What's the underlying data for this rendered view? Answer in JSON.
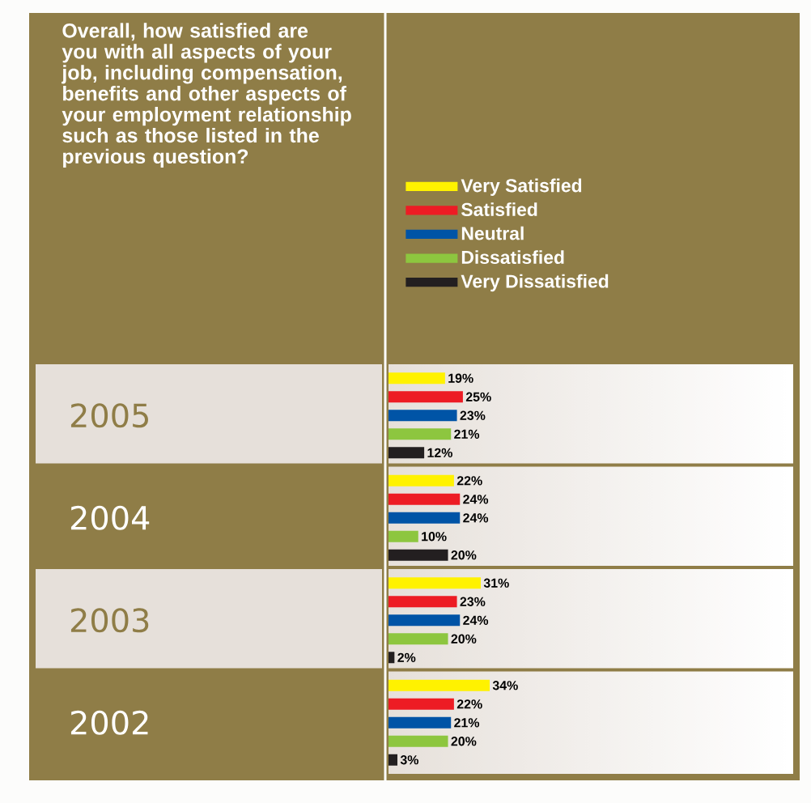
{
  "chart_data": {
    "type": "bar",
    "orientation": "horizontal",
    "title": "Overall, how satisfied are you with all aspects of your job, including compensation, benefits and other aspects of your employment relationship such as those listed in the previous question?",
    "categories": [
      "2005",
      "2004",
      "2003",
      "2002"
    ],
    "series": [
      {
        "name": "Very Satisfied",
        "color": "#fff200",
        "values": [
          19,
          22,
          31,
          34
        ],
        "value_labels": [
          "19%",
          "22%",
          "31%",
          "34%"
        ]
      },
      {
        "name": "Satisfied",
        "color": "#ed1c24",
        "values": [
          25,
          24,
          23,
          22
        ],
        "value_labels": [
          "25%",
          "24%",
          "23%",
          "22%"
        ]
      },
      {
        "name": "Neutral",
        "color": "#0054a6",
        "values": [
          23,
          24,
          24,
          21
        ],
        "value_labels": [
          "23%",
          "24%",
          "24%",
          "21%"
        ]
      },
      {
        "name": "Dissatisfied",
        "color": "#8dc63f",
        "values": [
          21,
          10,
          20,
          20
        ],
        "value_labels": [
          "21%",
          "10%",
          "20%",
          "20%"
        ]
      },
      {
        "name": "Very Dissatisfied",
        "color": "#231f20",
        "values": [
          12,
          20,
          2,
          3
        ],
        "value_labels": [
          "12%",
          "20%",
          "2%",
          "3%"
        ]
      }
    ],
    "legend": "top"
  }
}
